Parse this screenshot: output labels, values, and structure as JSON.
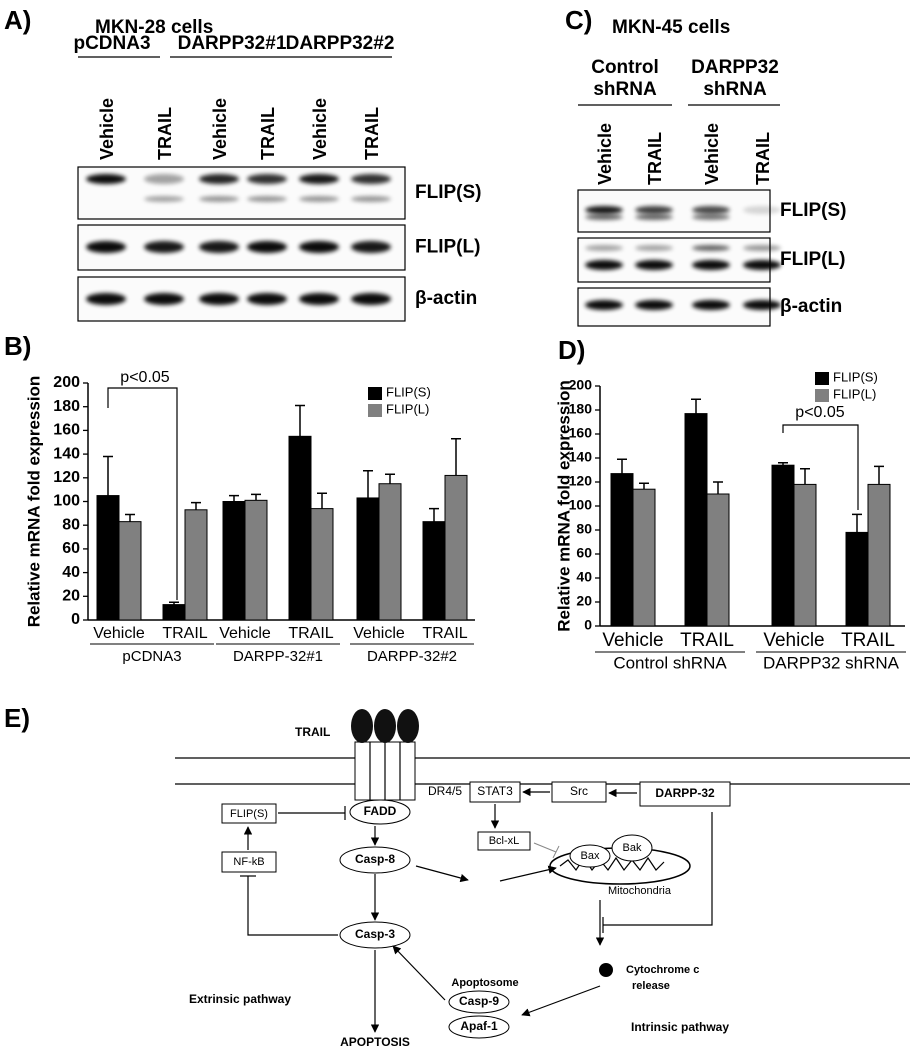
{
  "blot_a": {
    "panel_label": "A)",
    "title": "MKN-28 cells",
    "groups": [
      "pCDNA3",
      "DARPP32#1",
      "DARPP32#2"
    ],
    "lanes": [
      "Vehicle",
      "TRAIL",
      "Vehicle",
      "TRAIL",
      "Vehicle",
      "TRAIL"
    ],
    "rows": [
      "FLIP(S)",
      "FLIP(L)",
      "β-actin"
    ]
  },
  "blot_c": {
    "panel_label": "C)",
    "title": "MKN-45 cells",
    "groups": [
      [
        "Control",
        "shRNA"
      ],
      [
        "DARPP32",
        "shRNA"
      ]
    ],
    "lanes": [
      "Vehicle",
      "TRAIL",
      "Vehicle",
      "TRAIL"
    ],
    "rows": [
      "FLIP(S)",
      "FLIP(L)",
      "β-actin"
    ]
  },
  "chart_data": [
    {
      "type": "bar",
      "panel_label": "B)",
      "y_label": "Relative mRNA fold expression",
      "categories": [
        "Vehicle",
        "TRAIL",
        "Vehicle",
        "TRAIL",
        "Vehicle",
        "TRAIL"
      ],
      "groups": [
        "pCDNA3",
        "DARPP-32#1",
        "DARPP-32#2"
      ],
      "series": [
        {
          "name": "FLIP(S)",
          "color": "#000000",
          "values": [
            105,
            13,
            100,
            155,
            103,
            83
          ],
          "errors": [
            33,
            2,
            5,
            26,
            23,
            11
          ]
        },
        {
          "name": "FLIP(L)",
          "color": "#808080",
          "values": [
            83,
            93,
            101,
            94,
            115,
            122
          ],
          "errors": [
            6,
            6,
            5,
            13,
            8,
            31
          ]
        }
      ],
      "ylim": [
        0,
        200
      ],
      "yticks": [
        0,
        20,
        40,
        60,
        80,
        100,
        120,
        140,
        160,
        180,
        200
      ],
      "annotation": "p<0.05",
      "legend": "upper right"
    },
    {
      "type": "bar",
      "panel_label": "D)",
      "y_label": "Relative mRNA fold expression",
      "categories": [
        "Vehicle",
        "TRAIL",
        "Vehicle",
        "TRAIL"
      ],
      "groups": [
        "Control shRNA",
        "DARPP32 shRNA"
      ],
      "series": [
        {
          "name": "FLIP(S)",
          "color": "#000000",
          "values": [
            127,
            177,
            134,
            78
          ],
          "errors": [
            12,
            12,
            2,
            15
          ]
        },
        {
          "name": "FLIP(L)",
          "color": "#808080",
          "values": [
            114,
            110,
            118,
            118
          ],
          "errors": [
            5,
            10,
            13,
            15
          ]
        }
      ],
      "ylim": [
        0,
        200
      ],
      "yticks": [
        0,
        20,
        40,
        60,
        80,
        100,
        120,
        140,
        160,
        180,
        200
      ],
      "annotation": "p<0.05",
      "legend": "upper right"
    }
  ],
  "diagram": {
    "panel_label": "E)",
    "nodes": [
      "TRAIL",
      "DR4/5",
      "FADD",
      "FLIP(S)",
      "NF-kB",
      "Casp-8",
      "Casp-3",
      "STAT3",
      "Src",
      "DARPP-32",
      "Bcl-xL",
      "Bax",
      "Bak",
      "Mitochondria",
      "Cytochrome c",
      "release",
      "Apoptosome",
      "Casp-9",
      "Apaf-1",
      "Extrinsic pathway",
      "Intrinsic pathway",
      "APOPTOSIS"
    ]
  }
}
